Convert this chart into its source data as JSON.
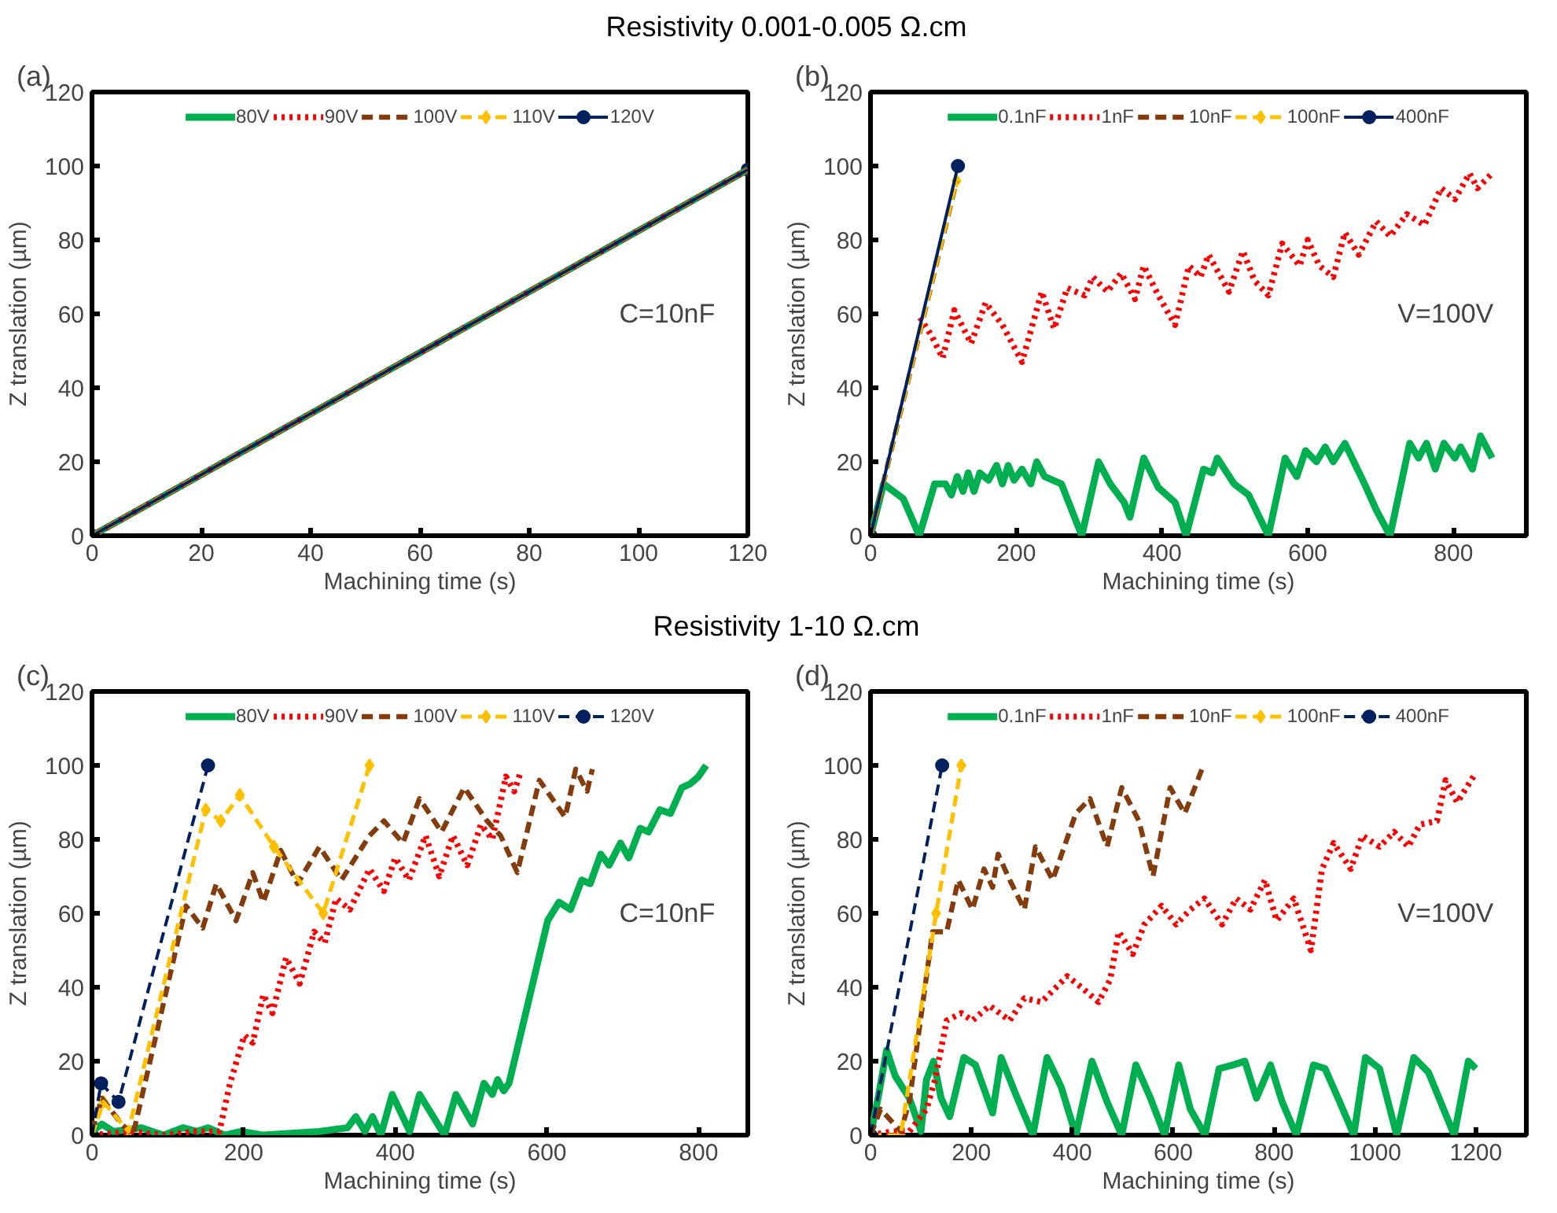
{
  "chart_data": [
    {
      "type": "line",
      "title": "Resistivity 0.001-0.005 Ω.cm",
      "xlabel": "Machining time (s)",
      "ylabel": "Z translation (µm)",
      "annotations": [
        "(a)",
        "C=10nF"
      ],
      "xlim": [
        0,
        120
      ],
      "ylim": [
        0,
        120
      ],
      "xticks": [
        0,
        20,
        40,
        60,
        80,
        100,
        120
      ],
      "yticks": [
        0,
        20,
        40,
        60,
        80,
        100,
        120
      ],
      "legend": "top",
      "series": [
        {
          "name": "80V",
          "color": "#00b050",
          "line_style": "solid",
          "x": [
            0,
            120
          ],
          "values": [
            0,
            99
          ]
        },
        {
          "name": "90V",
          "color": "#ff0000",
          "line_style": "dotted",
          "x": [
            0,
            120
          ],
          "values": [
            0,
            99
          ]
        },
        {
          "name": "100V",
          "color": "#843c0c",
          "line_style": "dashed",
          "x": [
            0,
            120
          ],
          "values": [
            0,
            99
          ]
        },
        {
          "name": "110V",
          "color": "#ffc000",
          "line_style": "dashed",
          "marker": "diamond",
          "x": [
            0,
            120
          ],
          "values": [
            0,
            99
          ]
        },
        {
          "name": "120V",
          "color": "#002060",
          "line_style": "solid",
          "marker": "circle",
          "x": [
            0,
            120
          ],
          "values": [
            0,
            99
          ]
        }
      ]
    },
    {
      "type": "line",
      "xlabel": "Machining time (s)",
      "ylabel": "Z translation (µm)",
      "annotations": [
        "(b)",
        "V=100V"
      ],
      "xlim": [
        0,
        900
      ],
      "ylim": [
        0,
        120
      ],
      "xticks": [
        0,
        200,
        400,
        600,
        800
      ],
      "yticks": [
        0,
        20,
        40,
        60,
        80,
        100,
        120
      ],
      "legend": "top",
      "series": [
        {
          "name": "0.1nF",
          "color": "#00b050",
          "line_style": "solid",
          "x": [
            0,
            18,
            45,
            67,
            88,
            103,
            111,
            119,
            127,
            134,
            142,
            150,
            162,
            173,
            181,
            189,
            197,
            208,
            220,
            228,
            239,
            262,
            290,
            313,
            329,
            348,
            356,
            375,
            395,
            418,
            433,
            457,
            469,
            476,
            499,
            519,
            546,
            569,
            585,
            597,
            612,
            624,
            635,
            651,
            678,
            694,
            713,
            740,
            752,
            763,
            775,
            787,
            802,
            810,
            826,
            837,
            853
          ],
          "values": [
            0,
            14,
            10,
            0,
            14,
            14,
            11,
            16,
            12,
            17,
            12,
            17,
            15,
            19,
            14,
            19,
            15,
            18,
            14,
            20,
            16,
            14,
            0,
            20,
            14,
            9,
            5,
            21,
            13,
            9,
            0,
            18,
            17,
            21,
            14,
            11,
            0,
            21,
            16,
            23,
            20,
            24,
            20,
            25,
            14,
            7,
            0,
            25,
            21,
            25,
            18,
            25,
            21,
            24,
            18,
            27,
            21
          ]
        },
        {
          "name": "1nF",
          "color": "#ff0000",
          "line_style": "dotted",
          "x": [
            68,
            84,
            99,
            115,
            138,
            158,
            181,
            208,
            235,
            252,
            270,
            294,
            305,
            325,
            344,
            363,
            375,
            395,
            418,
            437,
            453,
            464,
            492,
            511,
            527,
            546,
            565,
            589,
            600,
            616,
            635,
            651,
            670,
            694,
            713,
            736,
            760,
            783,
            802,
            822,
            833,
            853
          ],
          "values": [
            59,
            54,
            48,
            61,
            52,
            63,
            57,
            47,
            66,
            56,
            67,
            65,
            70,
            66,
            71,
            64,
            73,
            65,
            57,
            73,
            70,
            76,
            66,
            77,
            69,
            65,
            79,
            73,
            80,
            73,
            70,
            82,
            76,
            85,
            81,
            87,
            84,
            94,
            91,
            98,
            94,
            98
          ]
        },
        {
          "name": "10nF",
          "color": "#843c0c",
          "line_style": "dashed",
          "x": [
            0,
            118
          ],
          "values": [
            0,
            96
          ]
        },
        {
          "name": "100nF",
          "color": "#ffc000",
          "line_style": "dashed",
          "marker": "diamond",
          "x": [
            0,
            118
          ],
          "values": [
            0,
            96
          ]
        },
        {
          "name": "400nF",
          "color": "#002060",
          "line_style": "solid",
          "marker": "circle",
          "x": [
            0,
            120
          ],
          "values": [
            0,
            100
          ]
        }
      ]
    },
    {
      "type": "line",
      "title": "Resistivity 1-10 Ω.cm",
      "xlabel": "Machining time (s)",
      "ylabel": "Z translation (µm)",
      "annotations": [
        "(c)",
        "C=10nF"
      ],
      "xlim": [
        0,
        865
      ],
      "ylim": [
        0,
        120
      ],
      "xticks": [
        0,
        200,
        400,
        600,
        800
      ],
      "yticks": [
        0,
        20,
        40,
        60,
        80,
        100,
        120
      ],
      "legend": "top",
      "series": [
        {
          "name": "80V",
          "color": "#00b050",
          "line_style": "solid",
          "x": [
            0,
            13,
            28,
            65,
            94,
            120,
            138,
            153,
            175,
            197,
            226,
            300,
            337,
            348,
            360,
            370,
            381,
            396,
            419,
            432,
            465,
            480,
            502,
            517,
            528,
            535,
            543,
            550,
            601,
            616,
            631,
            646,
            657,
            671,
            682,
            697,
            708,
            723,
            734,
            749,
            763,
            778,
            789,
            800,
            810
          ],
          "values": [
            1,
            3,
            1,
            2,
            0,
            2,
            1,
            2,
            0,
            1,
            0,
            1,
            2,
            5,
            1,
            5,
            0,
            11,
            1,
            11,
            0,
            11,
            3,
            14,
            11,
            15,
            12,
            14,
            58,
            63,
            61,
            69,
            68,
            76,
            73,
            79,
            75,
            83,
            82,
            88,
            87,
            94,
            95,
            97,
            100
          ]
        },
        {
          "name": "90V",
          "color": "#ff0000",
          "line_style": "dotted",
          "x": [
            0,
            50,
            94,
            138,
            168,
            182,
            201,
            212,
            226,
            238,
            256,
            274,
            293,
            307,
            322,
            340,
            366,
            385,
            400,
            418,
            440,
            458,
            476,
            495,
            513,
            528,
            546,
            557,
            565
          ],
          "values": [
            0,
            1,
            0,
            1,
            1,
            14,
            27,
            25,
            38,
            33,
            48,
            41,
            55,
            52,
            64,
            61,
            72,
            66,
            75,
            69,
            81,
            70,
            81,
            73,
            84,
            80,
            97,
            93,
            98
          ]
        },
        {
          "name": "100V",
          "color": "#843c0c",
          "line_style": "dashed",
          "x": [
            0,
            13,
            39,
            54,
            124,
            146,
            164,
            190,
            212,
            226,
            249,
            271,
            300,
            329,
            366,
            385,
            410,
            432,
            461,
            491,
            521,
            539,
            561,
            590,
            624,
            638,
            653,
            660
          ],
          "values": [
            1,
            10,
            3,
            0,
            62,
            56,
            68,
            58,
            71,
            63,
            77,
            68,
            78,
            69,
            81,
            85,
            79,
            91,
            82,
            94,
            85,
            81,
            71,
            96,
            86,
            99,
            93,
            99
          ]
        },
        {
          "name": "110V",
          "color": "#ffc000",
          "line_style": "dashed",
          "marker": "diamond",
          "x": [
            0,
            15,
            48,
            150,
            170,
            195,
            240,
            305,
            366
          ],
          "values": [
            0,
            9,
            1,
            88,
            85,
            92,
            78,
            60,
            100
          ]
        },
        {
          "name": "120V",
          "color": "#002060",
          "line_style": "dashed",
          "marker": "circle",
          "x": [
            0,
            12,
            35,
            153
          ],
          "values": [
            0,
            14,
            9,
            100
          ]
        }
      ]
    },
    {
      "type": "line",
      "xlabel": "Machining time (s)",
      "ylabel": "Z translation (µm)",
      "annotations": [
        "(d)",
        "V=100V"
      ],
      "xlim": [
        0,
        1300
      ],
      "ylim": [
        0,
        120
      ],
      "xticks": [
        0,
        200,
        400,
        600,
        800,
        1000,
        1200
      ],
      "yticks": [
        0,
        20,
        40,
        60,
        80,
        100,
        120
      ],
      "legend": "top",
      "series": [
        {
          "name": "0.1nF",
          "color": "#00b050",
          "line_style": "solid",
          "x": [
            0,
            15,
            32,
            49,
            77,
            100,
            111,
            125,
            140,
            157,
            185,
            208,
            242,
            259,
            288,
            322,
            350,
            378,
            407,
            439,
            469,
            498,
            526,
            555,
            583,
            611,
            634,
            663,
            691,
            719,
            742,
            765,
            793,
            816,
            844,
            878,
            901,
            930,
            958,
            981,
            1009,
            1043,
            1077,
            1106,
            1157,
            1185,
            1200
          ],
          "values": [
            0,
            10,
            23,
            16,
            10,
            1,
            15,
            20,
            10,
            5,
            21,
            19,
            6,
            21,
            11,
            0,
            21,
            13,
            0,
            20,
            9,
            0,
            19,
            10,
            0,
            19,
            7,
            0,
            18,
            19,
            20,
            10,
            19,
            9,
            0,
            19,
            18,
            9,
            0,
            21,
            18,
            0,
            21,
            17,
            0,
            20,
            18
          ]
        },
        {
          "name": "1nF",
          "color": "#ff0000",
          "line_style": "dotted",
          "x": [
            0,
            43,
            77,
            111,
            128,
            151,
            180,
            202,
            236,
            276,
            305,
            339,
            390,
            418,
            452,
            475,
            492,
            520,
            543,
            577,
            606,
            634,
            662,
            697,
            725,
            753,
            782,
            805,
            839,
            873,
            895,
            918,
            952,
            975,
            1009,
            1038,
            1066,
            1089,
            1123,
            1140,
            1163,
            1200
          ],
          "values": [
            0,
            1,
            1,
            7,
            15,
            31,
            33,
            31,
            35,
            31,
            37,
            36,
            43,
            40,
            36,
            42,
            55,
            49,
            57,
            62,
            57,
            61,
            64,
            57,
            64,
            61,
            69,
            58,
            64,
            50,
            72,
            79,
            72,
            81,
            78,
            82,
            78,
            84,
            85,
            96,
            90,
            98
          ]
        },
        {
          "name": "10nF",
          "color": "#843c0c",
          "line_style": "dashed",
          "x": [
            0,
            20,
            60,
            77,
            123,
            151,
            174,
            202,
            225,
            242,
            253,
            276,
            305,
            327,
            361,
            407,
            435,
            469,
            498,
            532,
            560,
            594,
            623,
            657
          ],
          "values": [
            0,
            7,
            1,
            9,
            55,
            55,
            69,
            61,
            72,
            67,
            76,
            69,
            61,
            78,
            69,
            87,
            91,
            78,
            94,
            85,
            70,
            94,
            87,
            99
          ]
        },
        {
          "name": "100nF",
          "color": "#ffc000",
          "line_style": "dashed",
          "marker": "diamond",
          "x": [
            0,
            60,
            130,
            180
          ],
          "values": [
            0,
            0,
            60,
            100
          ]
        },
        {
          "name": "400nF",
          "color": "#002060",
          "line_style": "dashed",
          "marker": "circle",
          "x": [
            0,
            142
          ],
          "values": [
            0,
            100
          ]
        }
      ]
    }
  ]
}
